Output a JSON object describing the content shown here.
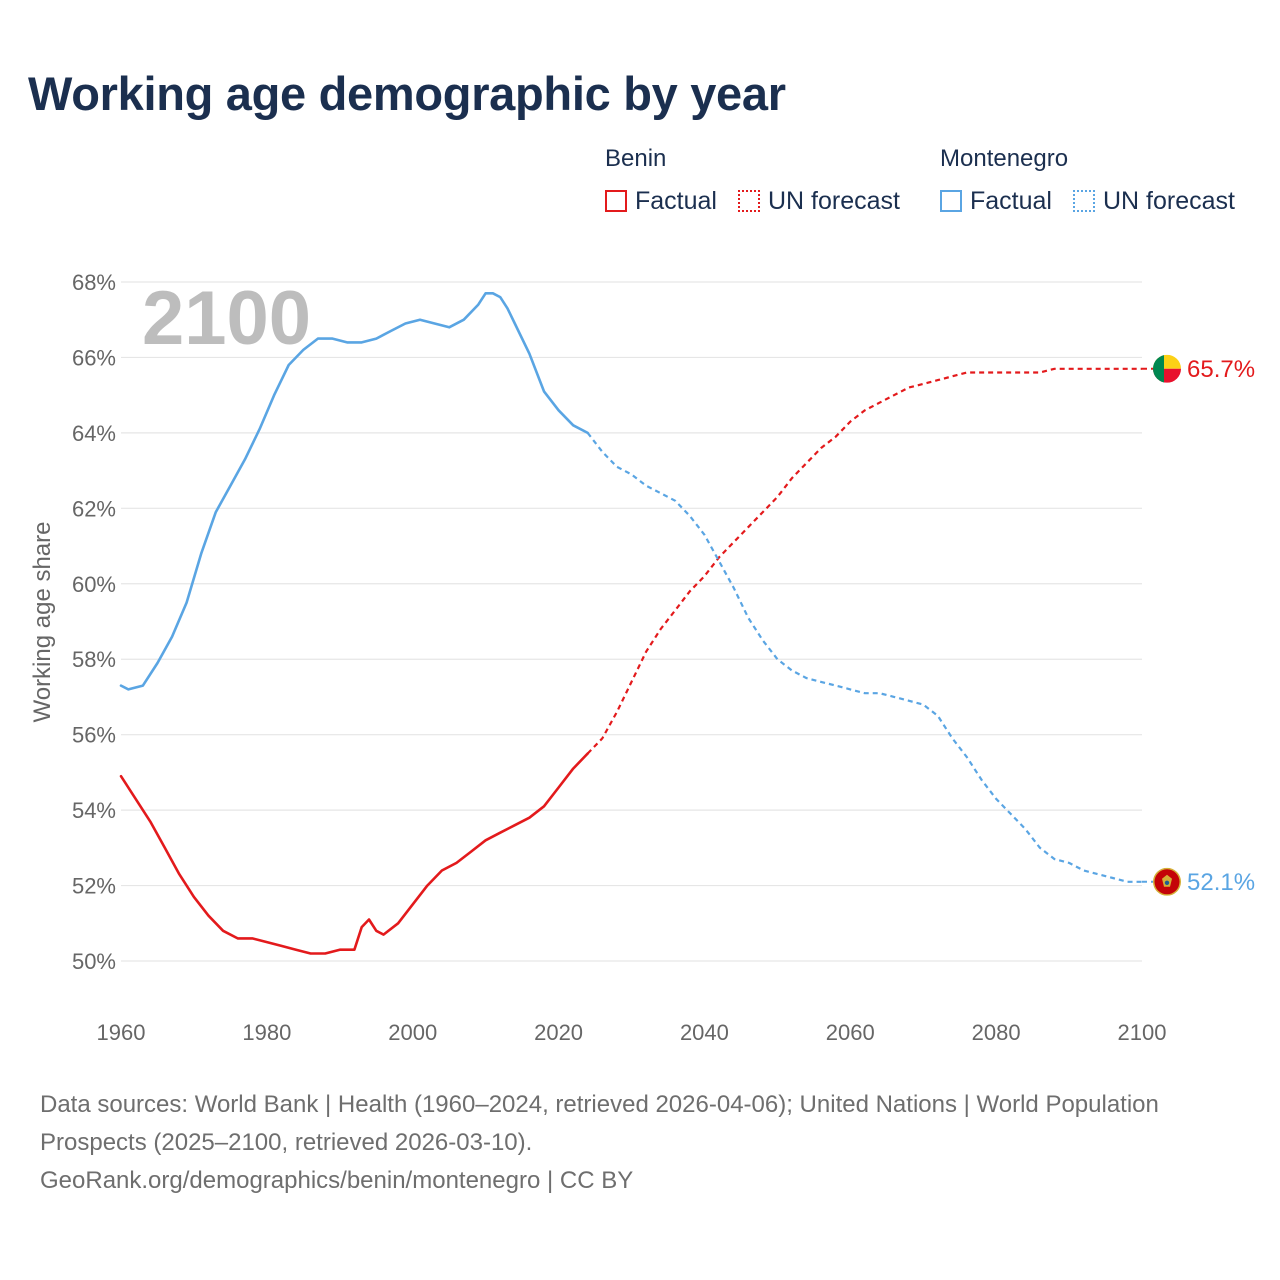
{
  "title": "Working age demographic by year",
  "legend": {
    "groups": [
      {
        "name": "Benin",
        "factual_label": "Factual",
        "forecast_label": "UN forecast",
        "color": "#e31a1c"
      },
      {
        "name": "Montenegro",
        "factual_label": "Factual",
        "forecast_label": "UN forecast",
        "color": "#5aa5e3"
      }
    ]
  },
  "footer": {
    "sources": "Data sources: World Bank | Health (1960–2024, retrieved 2026-04-06); United Nations | World Population Prospects (2025–2100, retrieved 2026-03-10).",
    "credit": "GeoRank.org/demographics/benin/montenegro | CC BY"
  },
  "chart_data": {
    "type": "line",
    "title": "Working age demographic by year",
    "year_watermark": "2100",
    "xlabel": "",
    "ylabel": "Working age share",
    "xlim": [
      1960,
      2100
    ],
    "ylim": [
      50,
      68
    ],
    "x_ticks": [
      1960,
      1980,
      2000,
      2020,
      2040,
      2060,
      2080,
      2100
    ],
    "y_ticks": [
      50,
      52,
      54,
      56,
      58,
      60,
      62,
      64,
      66,
      68
    ],
    "y_tick_labels": [
      "50%",
      "52%",
      "54%",
      "56%",
      "58%",
      "60%",
      "62%",
      "64%",
      "66%",
      "68%"
    ],
    "forecast_start": 2024,
    "grid": true,
    "series": [
      {
        "name": "Benin",
        "color": "#e31a1c",
        "end_label": "65.7%",
        "flag_icon": "benin-flag-icon",
        "x": [
          1960,
          1962,
          1964,
          1966,
          1968,
          1970,
          1972,
          1974,
          1976,
          1978,
          1980,
          1982,
          1984,
          1986,
          1988,
          1990,
          1992,
          1993,
          1994,
          1995,
          1996,
          1998,
          2000,
          2002,
          2004,
          2006,
          2008,
          2010,
          2012,
          2014,
          2016,
          2018,
          2020,
          2022,
          2024,
          2026,
          2028,
          2030,
          2032,
          2034,
          2036,
          2038,
          2040,
          2042,
          2044,
          2046,
          2048,
          2050,
          2052,
          2054,
          2056,
          2058,
          2060,
          2062,
          2064,
          2066,
          2068,
          2070,
          2072,
          2074,
          2076,
          2078,
          2080,
          2082,
          2084,
          2086,
          2088,
          2090,
          2092,
          2094,
          2096,
          2098,
          2100
        ],
        "values": [
          54.9,
          54.3,
          53.7,
          53.0,
          52.3,
          51.7,
          51.2,
          50.8,
          50.6,
          50.6,
          50.5,
          50.4,
          50.3,
          50.2,
          50.2,
          50.3,
          50.3,
          50.9,
          51.1,
          50.8,
          50.7,
          51.0,
          51.5,
          52.0,
          52.4,
          52.6,
          52.9,
          53.2,
          53.4,
          53.6,
          53.8,
          54.1,
          54.6,
          55.1,
          55.5,
          55.9,
          56.6,
          57.4,
          58.2,
          58.8,
          59.3,
          59.8,
          60.2,
          60.7,
          61.1,
          61.5,
          61.9,
          62.3,
          62.8,
          63.2,
          63.6,
          63.9,
          64.3,
          64.6,
          64.8,
          65.0,
          65.2,
          65.3,
          65.4,
          65.5,
          65.6,
          65.6,
          65.6,
          65.6,
          65.6,
          65.6,
          65.7,
          65.7,
          65.7,
          65.7,
          65.7,
          65.7,
          65.7
        ]
      },
      {
        "name": "Montenegro",
        "color": "#5aa5e3",
        "end_label": "52.1%",
        "flag_icon": "montenegro-flag-icon",
        "x": [
          1960,
          1961,
          1963,
          1965,
          1967,
          1969,
          1971,
          1973,
          1975,
          1977,
          1979,
          1981,
          1983,
          1985,
          1987,
          1989,
          1991,
          1993,
          1995,
          1997,
          1999,
          2001,
          2003,
          2005,
          2007,
          2009,
          2010,
          2011,
          2012,
          2013,
          2014,
          2016,
          2018,
          2020,
          2022,
          2024,
          2026,
          2028,
          2030,
          2032,
          2034,
          2036,
          2038,
          2040,
          2042,
          2044,
          2046,
          2048,
          2050,
          2052,
          2054,
          2056,
          2058,
          2060,
          2062,
          2064,
          2066,
          2068,
          2070,
          2072,
          2074,
          2076,
          2078,
          2080,
          2082,
          2084,
          2086,
          2088,
          2090,
          2092,
          2094,
          2096,
          2098,
          2100
        ],
        "values": [
          57.3,
          57.2,
          57.3,
          57.9,
          58.6,
          59.5,
          60.8,
          61.9,
          62.6,
          63.3,
          64.1,
          65.0,
          65.8,
          66.2,
          66.5,
          66.5,
          66.4,
          66.4,
          66.5,
          66.7,
          66.9,
          67.0,
          66.9,
          66.8,
          67.0,
          67.4,
          67.7,
          67.7,
          67.6,
          67.3,
          66.9,
          66.1,
          65.1,
          64.6,
          64.2,
          64.0,
          63.5,
          63.1,
          62.9,
          62.6,
          62.4,
          62.2,
          61.8,
          61.3,
          60.6,
          59.9,
          59.1,
          58.5,
          58.0,
          57.7,
          57.5,
          57.4,
          57.3,
          57.2,
          57.1,
          57.1,
          57.0,
          56.9,
          56.8,
          56.5,
          55.9,
          55.4,
          54.8,
          54.3,
          53.9,
          53.5,
          53.0,
          52.7,
          52.6,
          52.4,
          52.3,
          52.2,
          52.1,
          52.1
        ]
      }
    ]
  }
}
